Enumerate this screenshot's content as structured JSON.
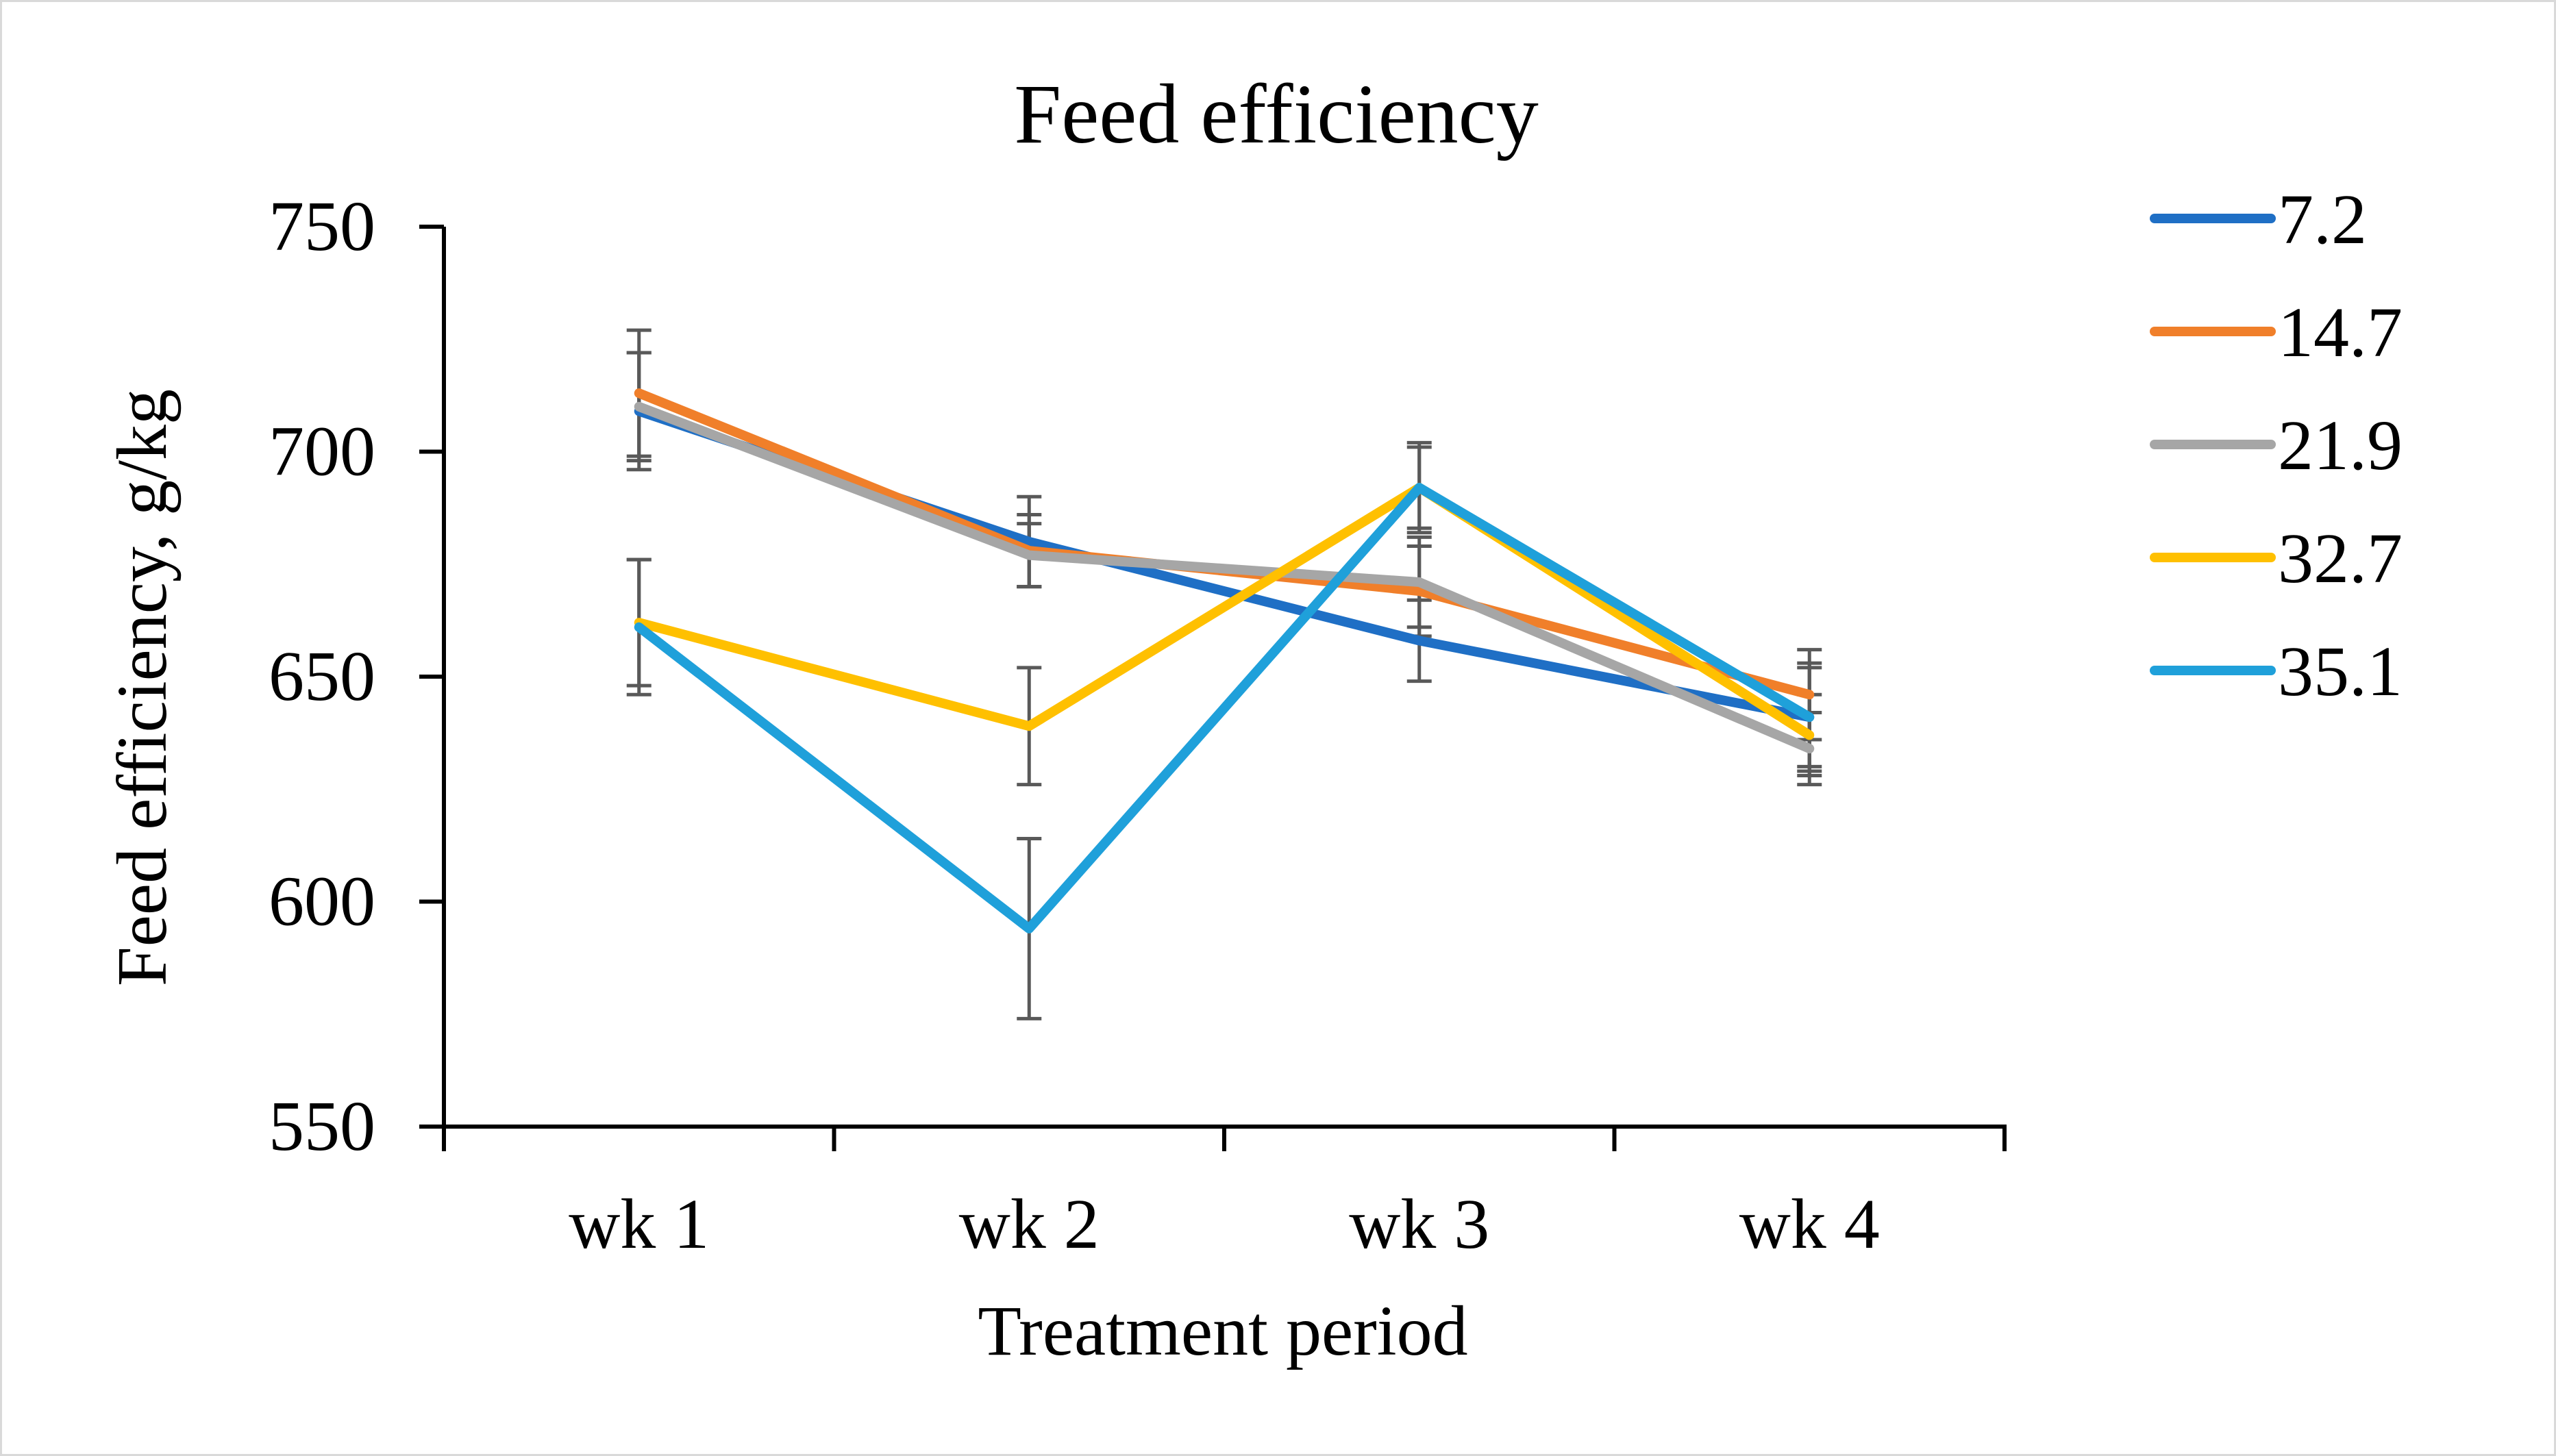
{
  "chart_data": {
    "type": "line",
    "title": "Feed efficiency",
    "xlabel": "Treatment period",
    "ylabel": "Feed efficiency, g/kg",
    "categories": [
      "wk 1",
      "wk 2",
      "wk 3",
      "wk 4"
    ],
    "ylim": [
      550,
      750
    ],
    "yticks": [
      550,
      600,
      650,
      700,
      750
    ],
    "ytick_labels": [
      "550",
      "600",
      "650",
      "700",
      "750"
    ],
    "grid": false,
    "legend": "right",
    "series": [
      {
        "name": "7.2",
        "color": "#1f6fc5",
        "values": [
          709,
          680,
          658,
          641
        ],
        "error": [
          13,
          10,
          9,
          11
        ]
      },
      {
        "name": "14.7",
        "color": "#f07f2a",
        "values": [
          713,
          678,
          669,
          646
        ],
        "error": [
          14,
          8,
          10,
          10
        ]
      },
      {
        "name": "21.9",
        "color": "#a6a6a6",
        "values": [
          710,
          677,
          671,
          634
        ],
        "error": [
          12,
          7,
          10,
          8
        ]
      },
      {
        "name": "32.7",
        "color": "#ffc000",
        "values": [
          662,
          639,
          692,
          637
        ],
        "error": [
          14,
          13,
          9,
          9
        ]
      },
      {
        "name": "35.1",
        "color": "#1fa0da",
        "values": [
          661,
          594,
          692,
          641
        ],
        "error": [
          15,
          20,
          10,
          12
        ]
      }
    ]
  }
}
